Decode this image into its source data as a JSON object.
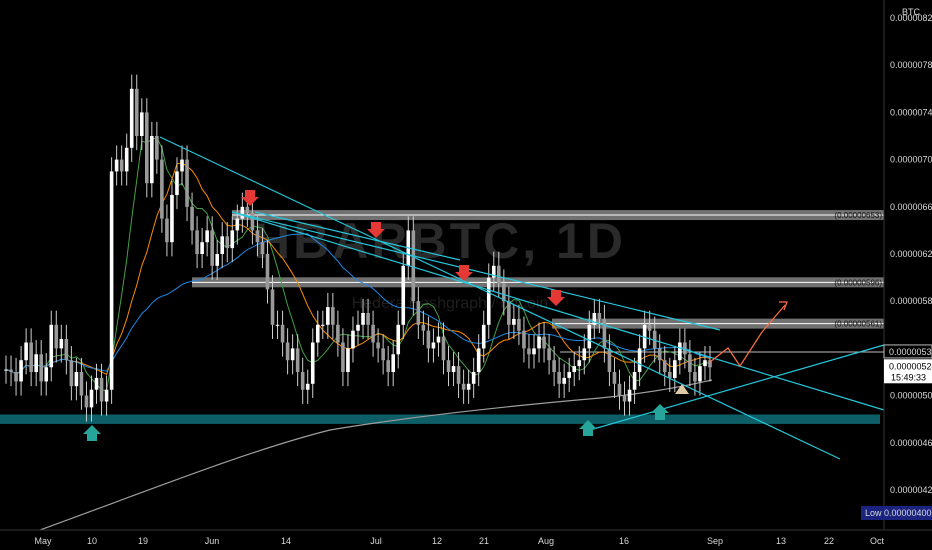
{
  "chart_data": {
    "type": "candlestick",
    "watermark": "HBARBTC, 1D",
    "watermark_sub": "Hedera Hashgraph / Bitcoin",
    "y_axis_unit": "BTC",
    "ylim": [
      3.95e-06,
      8.26e-06
    ],
    "y_ticks": [
      "0.00000820",
      "0.00000780",
      "0.00000740",
      "0.00000700",
      "0.00000660",
      "0.00000620",
      "0.00000580",
      "0.00000540",
      "0.00000500",
      "0.00000460",
      "0.00000420",
      "0.00000400"
    ],
    "x_ticks": [
      "May",
      "10",
      "19",
      "Jun",
      "14",
      "Jul",
      "12",
      "21",
      "Aug",
      "16",
      "Sep",
      "13",
      "22",
      "Oct"
    ],
    "price_levels": [
      {
        "label": "0.00000653",
        "value": 6.53e-06
      },
      {
        "label": "0.00000596",
        "value": 5.96e-06
      },
      {
        "label": "0.00000561",
        "value": 5.61e-06
      }
    ],
    "current_price": {
      "label": "0.00000524",
      "countdown": "15:49:33"
    },
    "last_close_tag": "0.00000537",
    "low_tag": {
      "label": "Low",
      "value": "0.00000400"
    },
    "support_zone": [
      4.76e-06,
      4.84e-06
    ],
    "resistance_arrows": 4,
    "support_arrows": 4,
    "colors": {
      "up": "#ffffff",
      "down": "#ffffff",
      "trendline": "#26c6da",
      "support": "#0f6e78",
      "arrow_down": "#e53935",
      "arrow_up": "#26a69a",
      "projection": "#ff7043",
      "ma_long": "#9e9e9e",
      "ma_mid": "#1e88e5",
      "ma_short": "#fb8c00",
      "ma_fast": "#43a047"
    }
  }
}
